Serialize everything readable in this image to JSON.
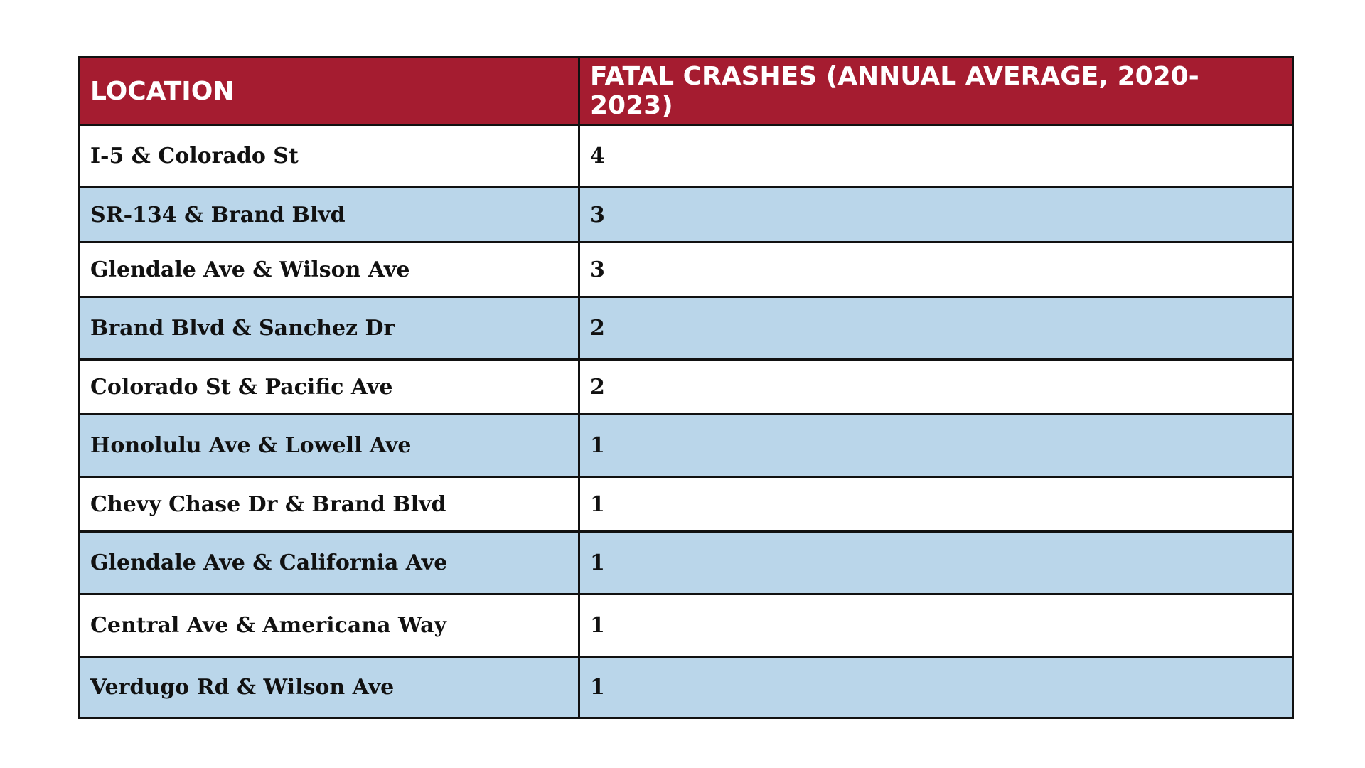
{
  "colors": {
    "header_background": "#a51c30",
    "header_text": "#ffffff",
    "row_alt_background": "#bad6ea",
    "row_background": "#ffffff",
    "border": "#111111"
  },
  "table": {
    "headers": {
      "location": "LOCATION",
      "fatal_crashes": "FATAL CRASHES (ANNUAL AVERAGE, 2020-2023)"
    },
    "rows": [
      {
        "location": "I-5 & Colorado St",
        "fatal_crashes": "4"
      },
      {
        "location": "SR-134 & Brand Blvd",
        "fatal_crashes": "3"
      },
      {
        "location": "Glendale Ave & Wilson Ave",
        "fatal_crashes": "3"
      },
      {
        "location": "Brand Blvd & Sanchez Dr",
        "fatal_crashes": "2"
      },
      {
        "location": "Colorado St & Pacific Ave",
        "fatal_crashes": "2"
      },
      {
        "location": "Honolulu Ave & Lowell Ave",
        "fatal_crashes": "1"
      },
      {
        "location": "Chevy Chase Dr & Brand Blvd",
        "fatal_crashes": "1"
      },
      {
        "location": "Glendale Ave & California Ave",
        "fatal_crashes": "1"
      },
      {
        "location": "Central Ave & Americana Way",
        "fatal_crashes": "1"
      },
      {
        "location": "Verdugo Rd & Wilson Ave",
        "fatal_crashes": "1"
      }
    ]
  }
}
